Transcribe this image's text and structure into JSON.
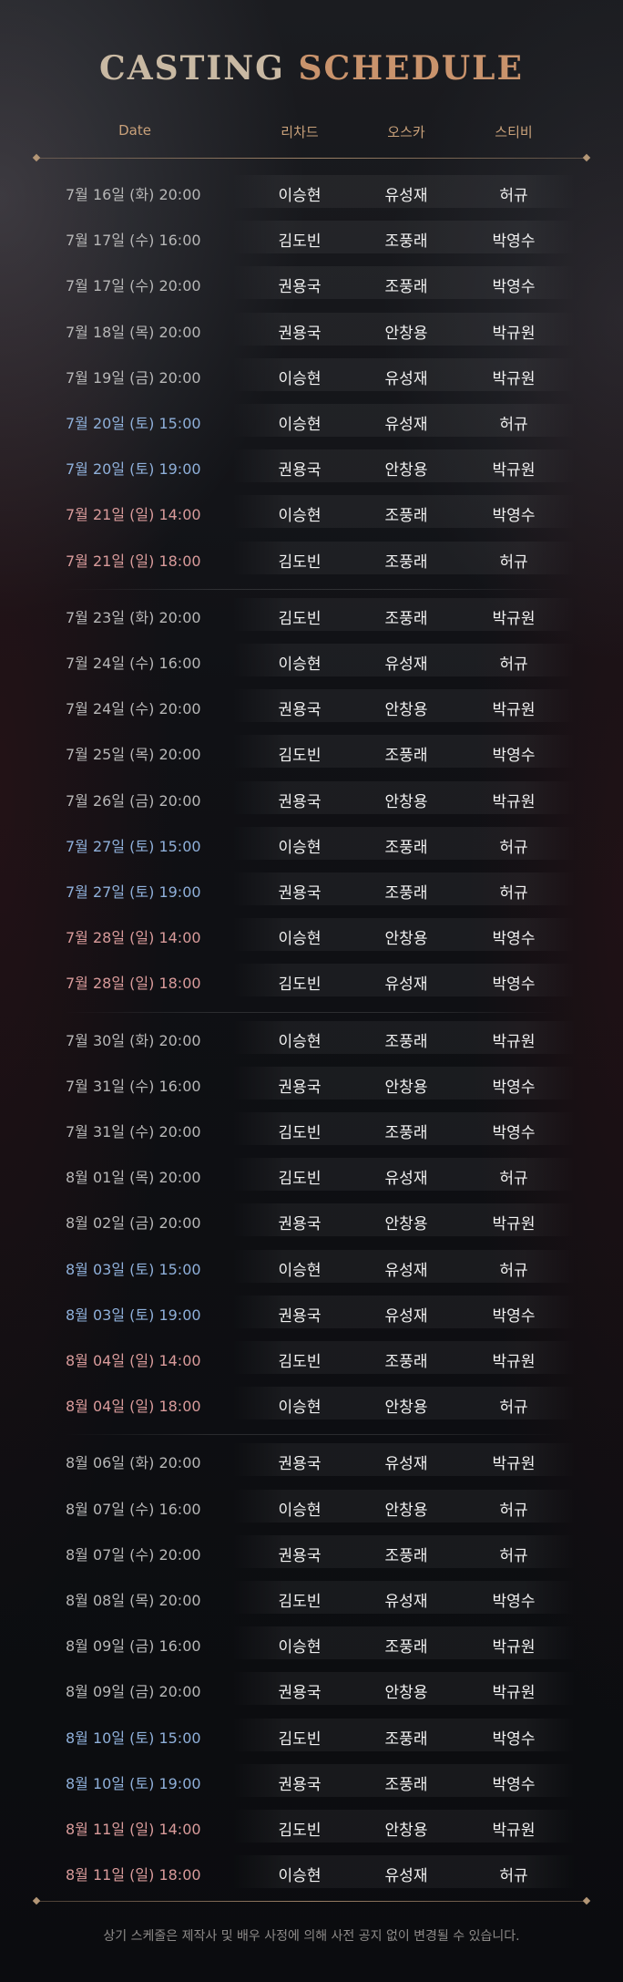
{
  "title": {
    "part1": "CASTING",
    "part2": "SCHEDULE"
  },
  "columns": {
    "date": "Date",
    "richard": "리차드",
    "oscar": "오스카",
    "stevie": "스티비"
  },
  "weeks": [
    [
      {
        "date": "7월 16일 (화) 20:00",
        "type": "weekday",
        "c1": "이승현",
        "c2": "유성재",
        "c3": "허규"
      },
      {
        "date": "7월 17일 (수) 16:00",
        "type": "weekday",
        "c1": "김도빈",
        "c2": "조풍래",
        "c3": "박영수"
      },
      {
        "date": "7월 17일 (수) 20:00",
        "type": "weekday",
        "c1": "권용국",
        "c2": "조풍래",
        "c3": "박영수"
      },
      {
        "date": "7월 18일 (목) 20:00",
        "type": "weekday",
        "c1": "권용국",
        "c2": "안창용",
        "c3": "박규원"
      },
      {
        "date": "7월 19일 (금) 20:00",
        "type": "weekday",
        "c1": "이승현",
        "c2": "유성재",
        "c3": "박규원"
      },
      {
        "date": "7월 20일 (토) 15:00",
        "type": "sat",
        "c1": "이승현",
        "c2": "유성재",
        "c3": "허규"
      },
      {
        "date": "7월 20일 (토) 19:00",
        "type": "sat",
        "c1": "권용국",
        "c2": "안창용",
        "c3": "박규원"
      },
      {
        "date": "7월 21일 (일) 14:00",
        "type": "sun",
        "c1": "이승현",
        "c2": "조풍래",
        "c3": "박영수"
      },
      {
        "date": "7월 21일 (일) 18:00",
        "type": "sun",
        "c1": "김도빈",
        "c2": "조풍래",
        "c3": "허규"
      }
    ],
    [
      {
        "date": "7월 23일 (화) 20:00",
        "type": "weekday",
        "c1": "김도빈",
        "c2": "조풍래",
        "c3": "박규원"
      },
      {
        "date": "7월 24일 (수) 16:00",
        "type": "weekday",
        "c1": "이승현",
        "c2": "유성재",
        "c3": "허규"
      },
      {
        "date": "7월 24일 (수) 20:00",
        "type": "weekday",
        "c1": "권용국",
        "c2": "안창용",
        "c3": "박규원"
      },
      {
        "date": "7월 25일 (목) 20:00",
        "type": "weekday",
        "c1": "김도빈",
        "c2": "조풍래",
        "c3": "박영수"
      },
      {
        "date": "7월 26일 (금) 20:00",
        "type": "weekday",
        "c1": "권용국",
        "c2": "안창용",
        "c3": "박규원"
      },
      {
        "date": "7월 27일 (토) 15:00",
        "type": "sat",
        "c1": "이승현",
        "c2": "조풍래",
        "c3": "허규"
      },
      {
        "date": "7월 27일 (토) 19:00",
        "type": "sat",
        "c1": "권용국",
        "c2": "조풍래",
        "c3": "허규"
      },
      {
        "date": "7월 28일 (일) 14:00",
        "type": "sun",
        "c1": "이승현",
        "c2": "안창용",
        "c3": "박영수"
      },
      {
        "date": "7월 28일 (일) 18:00",
        "type": "sun",
        "c1": "김도빈",
        "c2": "유성재",
        "c3": "박영수"
      }
    ],
    [
      {
        "date": "7월 30일 (화) 20:00",
        "type": "weekday",
        "c1": "이승현",
        "c2": "조풍래",
        "c3": "박규원"
      },
      {
        "date": "7월 31일 (수) 16:00",
        "type": "weekday",
        "c1": "권용국",
        "c2": "안창용",
        "c3": "박영수"
      },
      {
        "date": "7월 31일 (수) 20:00",
        "type": "weekday",
        "c1": "김도빈",
        "c2": "조풍래",
        "c3": "박영수"
      },
      {
        "date": "8월 01일 (목) 20:00",
        "type": "weekday",
        "c1": "김도빈",
        "c2": "유성재",
        "c3": "허규"
      },
      {
        "date": "8월 02일 (금) 20:00",
        "type": "weekday",
        "c1": "권용국",
        "c2": "안창용",
        "c3": "박규원"
      },
      {
        "date": "8월 03일 (토) 15:00",
        "type": "sat",
        "c1": "이승현",
        "c2": "유성재",
        "c3": "허규"
      },
      {
        "date": "8월 03일 (토) 19:00",
        "type": "sat",
        "c1": "권용국",
        "c2": "유성재",
        "c3": "박영수"
      },
      {
        "date": "8월 04일 (일) 14:00",
        "type": "sun",
        "c1": "김도빈",
        "c2": "조풍래",
        "c3": "박규원"
      },
      {
        "date": "8월 04일 (일) 18:00",
        "type": "sun",
        "c1": "이승현",
        "c2": "안창용",
        "c3": "허규"
      }
    ],
    [
      {
        "date": "8월 06일 (화) 20:00",
        "type": "weekday",
        "c1": "권용국",
        "c2": "유성재",
        "c3": "박규원"
      },
      {
        "date": "8월 07일 (수) 16:00",
        "type": "weekday",
        "c1": "이승현",
        "c2": "안창용",
        "c3": "허규"
      },
      {
        "date": "8월 07일 (수) 20:00",
        "type": "weekday",
        "c1": "권용국",
        "c2": "조풍래",
        "c3": "허규"
      },
      {
        "date": "8월 08일 (목) 20:00",
        "type": "weekday",
        "c1": "김도빈",
        "c2": "유성재",
        "c3": "박영수"
      },
      {
        "date": "8월 09일 (금) 16:00",
        "type": "weekday",
        "c1": "이승현",
        "c2": "조풍래",
        "c3": "박규원"
      },
      {
        "date": "8월 09일 (금) 20:00",
        "type": "weekday",
        "c1": "권용국",
        "c2": "안창용",
        "c3": "박규원"
      },
      {
        "date": "8월 10일 (토) 15:00",
        "type": "sat",
        "c1": "김도빈",
        "c2": "조풍래",
        "c3": "박영수"
      },
      {
        "date": "8월 10일 (토) 19:00",
        "type": "sat",
        "c1": "권용국",
        "c2": "조풍래",
        "c3": "박영수"
      },
      {
        "date": "8월 11일 (일) 14:00",
        "type": "sun",
        "c1": "김도빈",
        "c2": "안창용",
        "c3": "박규원"
      },
      {
        "date": "8월 11일 (일) 18:00",
        "type": "sun",
        "c1": "이승현",
        "c2": "유성재",
        "c3": "허규"
      }
    ]
  ],
  "footer": "상기 스케줄은 제작사 및 배우 사정에 의해 사전 공지 없이 변경될 수 있습니다.",
  "colors": {
    "weekday": "#b7b7b7",
    "saturday": "#8fb0da",
    "sunday": "#d99b9b",
    "accent": "#c9936c"
  }
}
